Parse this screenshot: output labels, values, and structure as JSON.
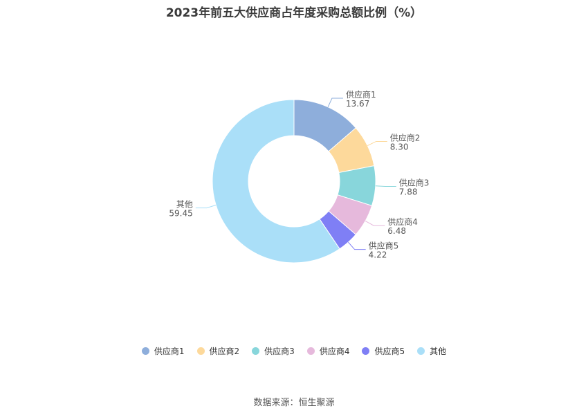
{
  "title": "2023年前五大供应商占年度采购总额比例（%）",
  "source": "数据来源：恒生聚源",
  "chart_data": {
    "type": "pie",
    "donut": true,
    "categories": [
      "供应商1",
      "供应商2",
      "供应商3",
      "供应商4",
      "供应商5",
      "其他"
    ],
    "values": [
      13.67,
      8.3,
      7.88,
      6.48,
      4.22,
      59.45
    ],
    "value_labels": [
      "13.67",
      "8.30",
      "7.88",
      "6.48",
      "4.22",
      "59.45"
    ],
    "colors": [
      "#8eaedb",
      "#fdd99b",
      "#88d6db",
      "#e6b9dc",
      "#7f7ff5",
      "#aadff8"
    ],
    "legend_position": "bottom"
  }
}
